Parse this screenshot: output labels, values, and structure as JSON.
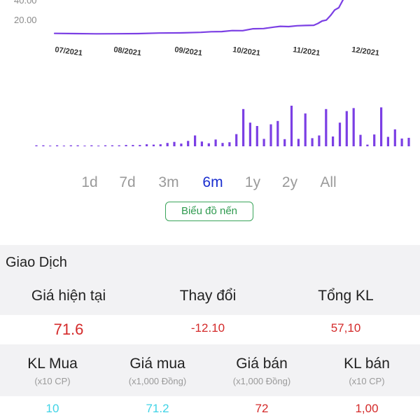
{
  "chart_data": [
    {
      "type": "line",
      "y_ticks": [
        "40.00",
        "20.00"
      ],
      "x_ticks": [
        "07/2021",
        "08/2021",
        "09/2021",
        "10/2021",
        "11/2021",
        "12/2021"
      ],
      "series": [
        {
          "values": [
            [
              0,
              12.2
            ],
            [
              10,
              12.0
            ],
            [
              20,
              11.8
            ],
            [
              30,
              11.9
            ],
            [
              40,
              12.0
            ],
            [
              50,
              12.5
            ],
            [
              60,
              12.6
            ],
            [
              70,
              13.1
            ],
            [
              75,
              13.7
            ],
            [
              80,
              13.8
            ],
            [
              85,
              14.7
            ],
            [
              90,
              14.6
            ],
            [
              95,
              16.3
            ],
            [
              100,
              16.5
            ],
            [
              105,
              17.8
            ],
            [
              108,
              18.5
            ],
            [
              112,
              18.2
            ],
            [
              116,
              19.0
            ],
            [
              120,
              19.2
            ],
            [
              124,
              19.4
            ],
            [
              126,
              21.0
            ],
            [
              128,
              23.2
            ],
            [
              130,
              24.0
            ],
            [
              132,
              28.0
            ],
            [
              134,
              33.0
            ],
            [
              136,
              35.0
            ],
            [
              138,
              42.0
            ]
          ]
        }
      ],
      "color": "#7b3fe4",
      "ylim": [
        0,
        44
      ]
    },
    {
      "type": "bar",
      "color": "#7b3fe4",
      "values": [
        0.3,
        0.3,
        0.2,
        0.3,
        0.2,
        0.3,
        0.3,
        0.2,
        0.3,
        0.2,
        0.3,
        0.3,
        0.3,
        0.4,
        0.4,
        0.4,
        0.6,
        0.5,
        0.6,
        1.0,
        1.3,
        0.8,
        1.6,
        3.2,
        1.4,
        0.9,
        2.0,
        1.0,
        1.2,
        3.6,
        11.0,
        7.0,
        6.0,
        2.2,
        6.5,
        7.5,
        2.1,
        12.0,
        2.2,
        9.7,
        2.4,
        3.2,
        11.0,
        2.9,
        7.0,
        10.4,
        11.3,
        3.4,
        0.5,
        3.5,
        11.5,
        2.8,
        5.0,
        2.3,
        2.5
      ]
    }
  ],
  "range_tabs": [
    "1d",
    "7d",
    "3m",
    "6m",
    "1y",
    "2y",
    "All"
  ],
  "active_tab": "6m",
  "candle_button": "Biểu đồ nến",
  "trade": {
    "title": "Giao Dịch",
    "row1": {
      "labels": [
        "Giá hiện tại",
        "Thay đổi",
        "Tổng KL"
      ],
      "values": [
        "71.6",
        "-12.10",
        "57,10"
      ]
    },
    "row2": {
      "labels": [
        "KL Mua",
        "Giá mua",
        "Giá bán",
        "KL bán"
      ],
      "units": [
        "(x10 CP)",
        "(x1,000 Đồng)",
        "(x1,000 Đồng)",
        "(x10 CP)"
      ],
      "values": [
        "10",
        "71.2",
        "72",
        "1,00"
      ]
    }
  },
  "colors": {
    "line": "#7b3fe4",
    "active_tab": "#1a2ecf",
    "inactive_tab": "#9a9a9a",
    "candle_border": "#3aa45a",
    "red": "#d42a2a",
    "cyan": "#3fd3e6"
  }
}
